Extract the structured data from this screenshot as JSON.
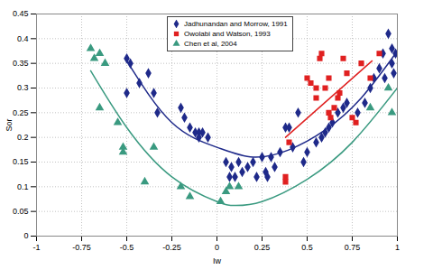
{
  "chart_data": {
    "type": "scatter",
    "x_label": "Iw",
    "y_label": "Sor",
    "xlim": [
      -1,
      1
    ],
    "ylim": [
      0,
      0.45
    ],
    "xticks": [
      -1,
      -0.75,
      -0.5,
      -0.25,
      0,
      0.25,
      0.5,
      0.75,
      1
    ],
    "yticks": [
      0,
      0.05,
      0.1,
      0.15,
      0.2,
      0.25,
      0.3,
      0.35,
      0.4,
      0.45
    ],
    "grid": true,
    "legend": "top",
    "series": [
      {
        "name": "Jadhunandan and Morrow, 1991",
        "color": "#1f2a8a",
        "marker": "diamond",
        "type": "scatter",
        "x": [
          -0.5,
          -0.48,
          -0.5,
          -0.43,
          -0.38,
          -0.35,
          -0.33,
          -0.2,
          -0.18,
          -0.15,
          -0.12,
          -0.1,
          -0.1,
          -0.08,
          -0.05,
          0.05,
          0.07,
          0.08,
          0.1,
          0.12,
          0.14,
          0.17,
          0.2,
          0.22,
          0.25,
          0.27,
          0.28,
          0.3,
          0.32,
          0.35,
          0.38,
          0.4,
          0.42,
          0.45,
          0.48,
          0.5,
          0.55,
          0.58,
          0.6,
          0.62,
          0.64,
          0.67,
          0.7,
          0.72,
          0.78,
          0.82,
          0.85,
          0.87,
          0.9,
          0.92,
          0.93,
          0.95,
          0.97,
          0.98,
          0.99,
          0.97
        ],
        "values": [
          0.36,
          0.35,
          0.29,
          0.31,
          0.33,
          0.29,
          0.25,
          0.26,
          0.24,
          0.22,
          0.21,
          0.21,
          0.2,
          0.21,
          0.2,
          0.15,
          0.12,
          0.14,
          0.12,
          0.15,
          0.13,
          0.14,
          0.15,
          0.12,
          0.16,
          0.13,
          0.12,
          0.16,
          0.14,
          0.17,
          0.22,
          0.22,
          0.18,
          0.25,
          0.15,
          0.17,
          0.19,
          0.2,
          0.21,
          0.22,
          0.23,
          0.25,
          0.26,
          0.27,
          0.25,
          0.27,
          0.3,
          0.32,
          0.34,
          0.37,
          0.32,
          0.41,
          0.35,
          0.33,
          0.37,
          0.38
        ]
      },
      {
        "name": "Owolabi and Watson, 1993",
        "color": "#e02020",
        "marker": "square",
        "type": "scatter",
        "x": [
          0.38,
          0.38,
          0.4,
          0.5,
          0.52,
          0.55,
          0.55,
          0.57,
          0.58,
          0.6,
          0.62,
          0.62,
          0.63,
          0.65,
          0.67,
          0.68,
          0.7,
          0.72,
          0.75,
          0.77,
          0.8,
          0.85,
          0.9
        ],
        "values": [
          0.12,
          0.11,
          0.19,
          0.32,
          0.31,
          0.3,
          0.28,
          0.36,
          0.37,
          0.3,
          0.32,
          0.25,
          0.24,
          0.26,
          0.28,
          0.29,
          0.36,
          0.33,
          0.24,
          0.23,
          0.35,
          0.32,
          0.37
        ]
      },
      {
        "name": "Chen et al, 2004",
        "color": "#3a9a80",
        "marker": "triangle",
        "type": "scatter",
        "x": [
          -0.7,
          -0.68,
          -0.65,
          -0.65,
          -0.62,
          -0.55,
          -0.52,
          -0.52,
          -0.4,
          -0.35,
          -0.2,
          -0.15,
          0.02,
          0.05,
          0.07,
          0.12,
          0.85,
          0.95,
          0.97
        ],
        "values": [
          0.38,
          0.36,
          0.37,
          0.26,
          0.35,
          0.23,
          0.18,
          0.17,
          0.11,
          0.18,
          0.1,
          0.08,
          0.07,
          0.09,
          0.1,
          0.1,
          0.26,
          0.3,
          0.25
        ]
      },
      {
        "color": "#1f2a8a",
        "type": "line",
        "x": [
          -0.5,
          -0.25,
          0,
          0.2,
          0.4,
          0.6,
          0.8,
          1
        ],
        "values": [
          0.355,
          0.23,
          0.18,
          0.16,
          0.175,
          0.215,
          0.28,
          0.375
        ]
      },
      {
        "color": "#e02020",
        "type": "line",
        "x": [
          0.38,
          0.86
        ],
        "values": [
          0.2,
          0.355
        ]
      },
      {
        "color": "#3a9a80",
        "type": "line",
        "x": [
          -0.7,
          -0.5,
          -0.25,
          0,
          0.1,
          0.25,
          0.5,
          0.75,
          1
        ],
        "values": [
          0.335,
          0.22,
          0.12,
          0.07,
          0.062,
          0.07,
          0.115,
          0.19,
          0.3
        ]
      }
    ]
  }
}
